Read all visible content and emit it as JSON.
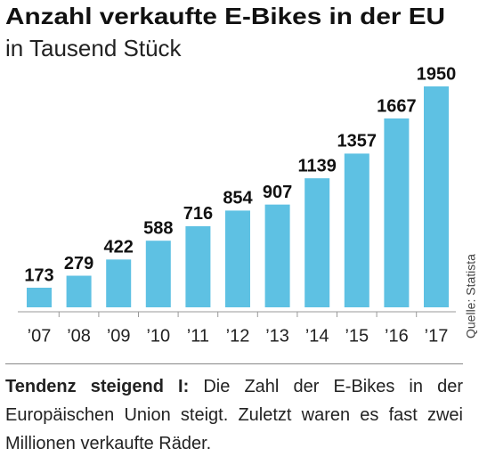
{
  "chart_data": {
    "type": "bar",
    "title": "Anzahl verkaufte E-Bikes in der EU",
    "subtitle": "in Tausend Stück",
    "categories": [
      "’07",
      "’08",
      "’09",
      "’10",
      "’11",
      "’12",
      "’13",
      "’14",
      "’15",
      "’16",
      "’17"
    ],
    "values": [
      173,
      279,
      422,
      588,
      716,
      854,
      907,
      1139,
      1357,
      1667,
      1950
    ],
    "color": "#5ec1e3",
    "source": "Quelle: Statista",
    "note_label": "Tendenz steigend I:",
    "note_text": " Die Zahl der E-Bikes in der Europäischen Union steigt. Zuletzt waren es fast zwei Millionen verkaufte Räder."
  }
}
